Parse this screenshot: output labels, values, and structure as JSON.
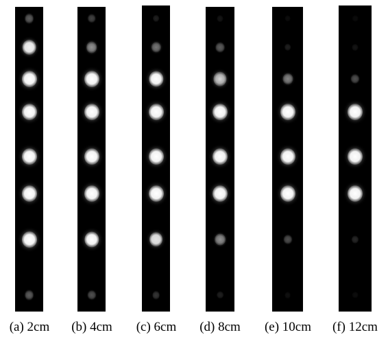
{
  "figure": {
    "panels": [
      {
        "caption": "(a) 2cm",
        "brightness": [
          0.35,
          0.9,
          1.0,
          1.0,
          1.0,
          1.0,
          1.0,
          0.35
        ]
      },
      {
        "caption": "(b) 4cm",
        "brightness": [
          0.25,
          0.55,
          1.0,
          1.0,
          1.0,
          1.0,
          0.95,
          0.3
        ]
      },
      {
        "caption": "(c) 6cm",
        "brightness": [
          0.12,
          0.45,
          0.95,
          1.0,
          1.0,
          1.0,
          0.85,
          0.2
        ]
      },
      {
        "caption": "(d) 8cm",
        "brightness": [
          0.08,
          0.35,
          0.8,
          1.0,
          1.0,
          1.0,
          0.55,
          0.12
        ]
      },
      {
        "caption": "(e) 10cm",
        "brightness": [
          0.05,
          0.12,
          0.5,
          1.0,
          1.0,
          1.0,
          0.3,
          0.06
        ]
      },
      {
        "caption": "(f) 12cm",
        "brightness": [
          0.04,
          0.08,
          0.3,
          1.0,
          1.0,
          1.0,
          0.15,
          0.05
        ]
      }
    ]
  }
}
